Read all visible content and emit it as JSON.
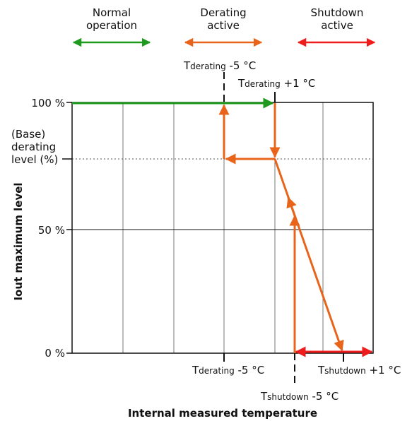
{
  "regions": {
    "normal": {
      "line1": "Normal",
      "line2": "operation",
      "color": "#1e9a1e"
    },
    "derating": {
      "line1": "Derating",
      "line2": "active",
      "color": "#e8641b"
    },
    "shutdown": {
      "line1": "Shutdown",
      "line2": "active",
      "color": "#ee1c1c"
    }
  },
  "y_ticks": {
    "top": "100 %",
    "mid": "50 %",
    "bottom": "0 %",
    "base_line1": "(Base)",
    "base_line2": "derating",
    "base_line3": "level (%)"
  },
  "temps": {
    "top_minus": {
      "T": "T",
      "sub": "derating",
      "rest": " -5 °C"
    },
    "top_plus": {
      "T": "T",
      "sub": "derating",
      "rest": " +1 °C"
    },
    "bottom_derating": {
      "T": "T",
      "sub": "derating",
      "rest": " -5 °C"
    },
    "bottom_shutdown_plus": {
      "T": "T",
      "sub": "shutdown",
      "rest": " +1 °C"
    },
    "bottom_shutdown_minus": {
      "T": "T",
      "sub": "shutdown",
      "rest": " -5 °C"
    }
  },
  "axes": {
    "xlabel": "Internal measured temperature",
    "ylabel": "Iout maximum level"
  }
}
